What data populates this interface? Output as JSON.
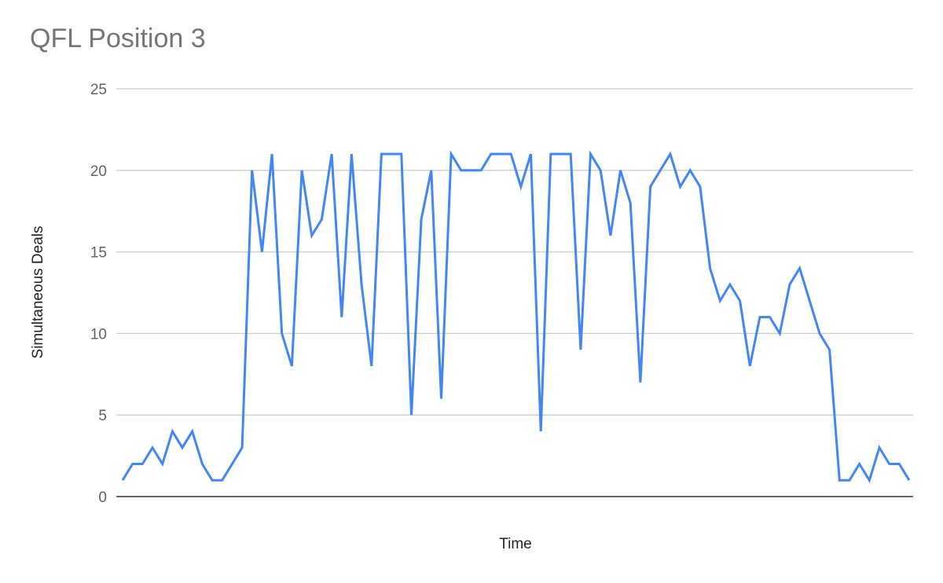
{
  "chart_data": {
    "type": "line",
    "title": "QFL Position 3",
    "xlabel": "Time",
    "ylabel": "Simultaneous Deals",
    "ylim": [
      0,
      25
    ],
    "yticks": [
      "0",
      "5",
      "10",
      "15",
      "20",
      "25"
    ],
    "grid": true,
    "line_color": "#4285f4",
    "series": [
      {
        "values": [
          1,
          2,
          2,
          3,
          2,
          4,
          3,
          4,
          2,
          1,
          1,
          2,
          3,
          20,
          15,
          21,
          10,
          8,
          20,
          16,
          17,
          21,
          11,
          21,
          13,
          8,
          21,
          21,
          21,
          5,
          17,
          20,
          6,
          21,
          20,
          20,
          20,
          21,
          21,
          21,
          19,
          21,
          4,
          21,
          21,
          21,
          9,
          21,
          20,
          16,
          20,
          18,
          7,
          19,
          20,
          21,
          19,
          20,
          19,
          14,
          12,
          13,
          12,
          8,
          11,
          11,
          10,
          13,
          14,
          12,
          10,
          9,
          1,
          1,
          2,
          1,
          3,
          2,
          2,
          1
        ]
      }
    ]
  }
}
